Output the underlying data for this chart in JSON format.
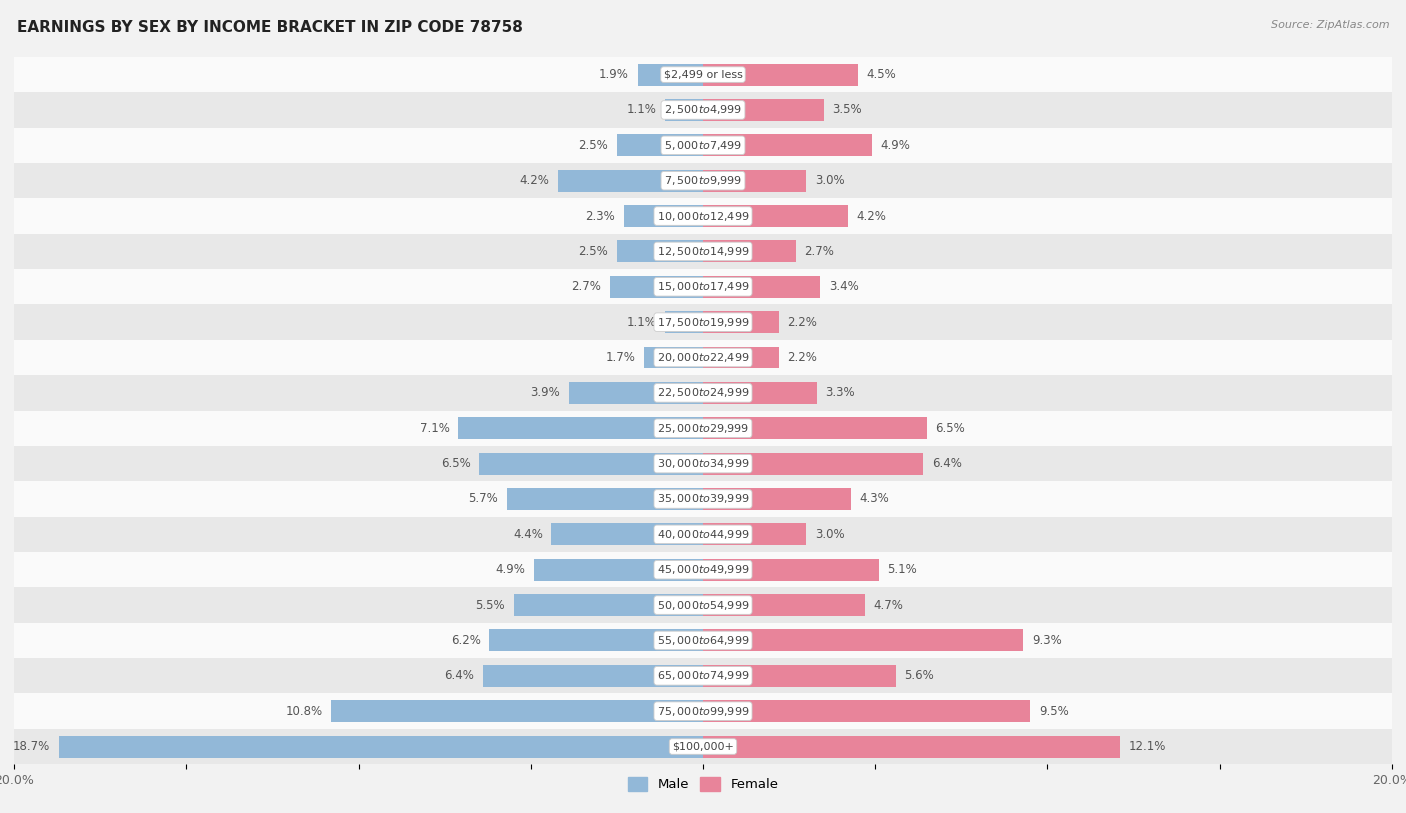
{
  "title": "EARNINGS BY SEX BY INCOME BRACKET IN ZIP CODE 78758",
  "source": "Source: ZipAtlas.com",
  "categories": [
    "$2,499 or less",
    "$2,500 to $4,999",
    "$5,000 to $7,499",
    "$7,500 to $9,999",
    "$10,000 to $12,499",
    "$12,500 to $14,999",
    "$15,000 to $17,499",
    "$17,500 to $19,999",
    "$20,000 to $22,499",
    "$22,500 to $24,999",
    "$25,000 to $29,999",
    "$30,000 to $34,999",
    "$35,000 to $39,999",
    "$40,000 to $44,999",
    "$45,000 to $49,999",
    "$50,000 to $54,999",
    "$55,000 to $64,999",
    "$65,000 to $74,999",
    "$75,000 to $99,999",
    "$100,000+"
  ],
  "male_values": [
    1.9,
    1.1,
    2.5,
    4.2,
    2.3,
    2.5,
    2.7,
    1.1,
    1.7,
    3.9,
    7.1,
    6.5,
    5.7,
    4.4,
    4.9,
    5.5,
    6.2,
    6.4,
    10.8,
    18.7
  ],
  "female_values": [
    4.5,
    3.5,
    4.9,
    3.0,
    4.2,
    2.7,
    3.4,
    2.2,
    2.2,
    3.3,
    6.5,
    6.4,
    4.3,
    3.0,
    5.1,
    4.7,
    9.3,
    5.6,
    9.5,
    12.1
  ],
  "male_color": "#92b8d8",
  "female_color": "#e8849a",
  "background_color": "#f2f2f2",
  "row_color_light": "#fafafa",
  "row_color_dark": "#e8e8e8",
  "axis_max": 20.0,
  "label_fontsize": 8.5,
  "category_fontsize": 8.0,
  "title_fontsize": 11,
  "source_fontsize": 8
}
